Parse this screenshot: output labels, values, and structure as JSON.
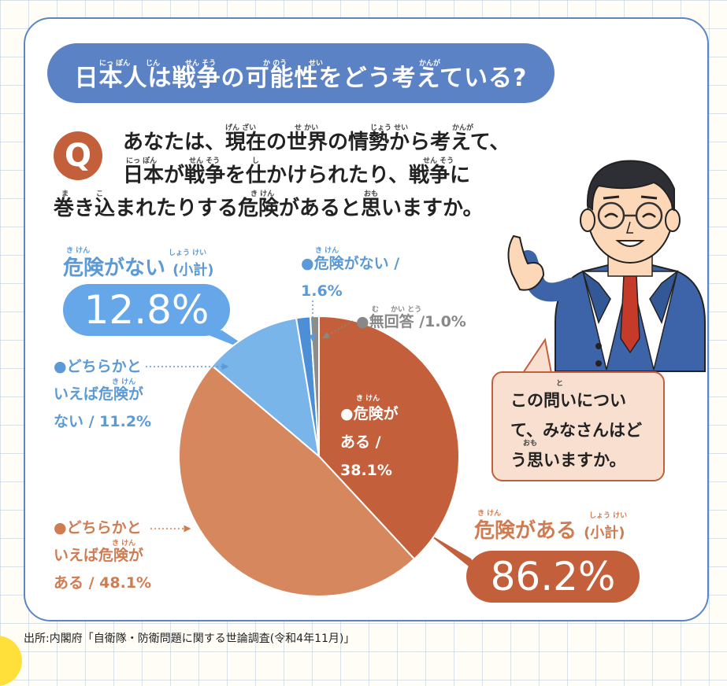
{
  "title": {
    "text": "日本人は戦争の可能性をどう考えている?"
  },
  "question": {
    "badge": "Q",
    "line1": "あなたは、現在の世界の情勢から考えて、",
    "line2": "日本が戦争を仕かけられたり、戦争に",
    "line3": "巻き込まれたりする危険があると思いますか。"
  },
  "subtotals": {
    "no_danger": {
      "label": "危険がない",
      "suffix": "(小計)",
      "value": "12.8%"
    },
    "danger": {
      "label": "危険がある",
      "suffix": "(小計)",
      "value": "86.2%"
    }
  },
  "chart_data": {
    "type": "pie",
    "start": "12 o'clock, clockwise",
    "slices": [
      {
        "label": "●危険がある / 38.1%",
        "value": 38.1,
        "color": "#c3603b"
      },
      {
        "label": "●どちらかといえば危険がある / 48.1%",
        "value": 48.1,
        "color": "#d6875e"
      },
      {
        "label": "●どちらかといえば危険がない / 11.2%",
        "value": 11.2,
        "color": "#7ab5ea"
      },
      {
        "label": "●危険がない / 1.6%",
        "value": 1.6,
        "color": "#4d8fd6"
      },
      {
        "label": "●無回答 /1.0%",
        "value": 1.0,
        "color": "#8c8c8c"
      }
    ],
    "labels": {
      "danger": [
        "●危険が",
        "ある /",
        "38.1%"
      ],
      "somewhat_danger": [
        "●どちらかと",
        "いえば危険が",
        "ある / 48.1%"
      ],
      "somewhat_no": [
        "●どちらかと",
        "いえば危険が",
        "ない / 11.2%"
      ],
      "no_danger": [
        "●危険がない /",
        "1.6%"
      ],
      "no_answer": "●無回答 /1.0%"
    }
  },
  "speech": {
    "lines": [
      "この問いについ",
      "て、みなさんはど",
      "う思いますか。"
    ]
  },
  "source": "出所:内閣府「自衛隊・防衛問題に関する世論調査(令和4年11月)」",
  "ruby": {
    "nippon": "にっ ぽん",
    "jin": "じん",
    "sensou": "せん そう",
    "kanou": "か のう",
    "sei": "せい",
    "kanga": "かんが",
    "genzai": "げん ざい",
    "sekai": "せ かい",
    "jousei": "じょう せい",
    "shi": "し",
    "maki": "ま",
    "komi": "こ",
    "kiken": "き けん",
    "omo": "おも",
    "shoukei": "しょう けい",
    "mu": "む",
    "kaitou": "かい とう",
    "to": "と"
  }
}
